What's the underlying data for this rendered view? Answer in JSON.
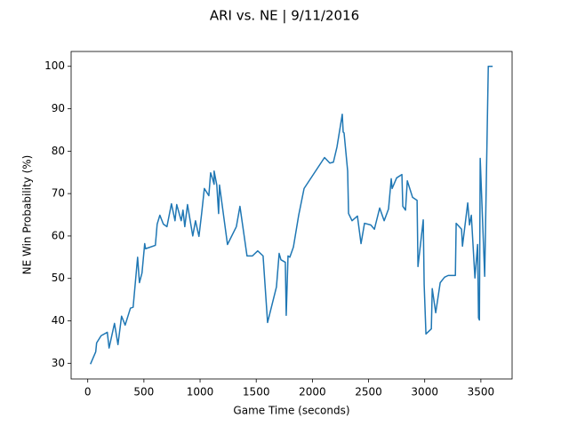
{
  "chart_data": {
    "type": "line",
    "title": "ARI vs. NE | 9/11/2016",
    "x_label": "Game Time (seconds)",
    "y_label": "NE Win Probability (%)",
    "xlim": [
      -148,
      3778
    ],
    "ylim": [
      26.3,
      103.5
    ],
    "xticks": [
      0,
      500,
      1000,
      1500,
      2000,
      2500,
      3000,
      3500
    ],
    "yticks": [
      30,
      40,
      50,
      60,
      70,
      80,
      90,
      100
    ],
    "grid": false,
    "series": [
      {
        "name": "NE Win Probability",
        "color": "#1f77b4",
        "x": [
          24,
          71,
          79,
          119,
          174,
          190,
          238,
          269,
          301,
          333,
          380,
          404,
          444,
          460,
          483,
          507,
          515,
          602,
          618,
          642,
          673,
          705,
          745,
          777,
          792,
          832,
          848,
          864,
          888,
          935,
          959,
          990,
          1014,
          1038,
          1078,
          1094,
          1109,
          1125,
          1125,
          1149,
          1165,
          1173,
          1244,
          1323,
          1355,
          1418,
          1466,
          1513,
          1561,
          1601,
          1680,
          1704,
          1720,
          1759,
          1767,
          1783,
          1799,
          1831,
          1878,
          1926,
          2108,
          2155,
          2187,
          2219,
          2266,
          2274,
          2282,
          2314,
          2322,
          2353,
          2401,
          2433,
          2464,
          2520,
          2552,
          2599,
          2639,
          2678,
          2702,
          2710,
          2750,
          2797,
          2805,
          2829,
          2845,
          2892,
          2932,
          2940,
          2987,
          2995,
          3011,
          3059,
          3067,
          3098,
          3138,
          3177,
          3209,
          3273,
          3280,
          3328,
          3336,
          3383,
          3399,
          3415,
          3447,
          3471,
          3479,
          3487,
          3494,
          3534,
          3566,
          3605
        ],
        "values": [
          29.8,
          32.7,
          34.8,
          36.5,
          37.3,
          33.6,
          39.4,
          34.4,
          41.1,
          39,
          43,
          43.2,
          55,
          49,
          51.3,
          58.2,
          57,
          57.8,
          62.8,
          64.9,
          62.8,
          62.2,
          67.6,
          63.6,
          67.4,
          63.6,
          66.1,
          62.2,
          67.4,
          60,
          63.6,
          59.9,
          65.3,
          71.2,
          69.5,
          74.9,
          73.7,
          72.2,
          75.3,
          72,
          65.3,
          72,
          58,
          62.2,
          67,
          55.3,
          55.3,
          56.5,
          55.3,
          39.6,
          48,
          55.9,
          54.4,
          53.8,
          41.3,
          55.3,
          55,
          57.4,
          64.9,
          71.2,
          78.5,
          77.2,
          77.4,
          81,
          88.7,
          84.5,
          84.3,
          75.3,
          65.3,
          63.6,
          64.7,
          58.2,
          63,
          62.6,
          61.6,
          66.6,
          63.6,
          66.4,
          73.5,
          71.2,
          73.7,
          74.5,
          67,
          66.1,
          73,
          69.1,
          68.4,
          52.8,
          63.8,
          48.6,
          36.9,
          38.1,
          47.6,
          41.9,
          49,
          50.3,
          50.7,
          50.7,
          63,
          61.6,
          57.6,
          67.8,
          62.6,
          64.9,
          50.1,
          58,
          40.7,
          40.2,
          78.3,
          50.5,
          100,
          100
        ]
      }
    ]
  }
}
